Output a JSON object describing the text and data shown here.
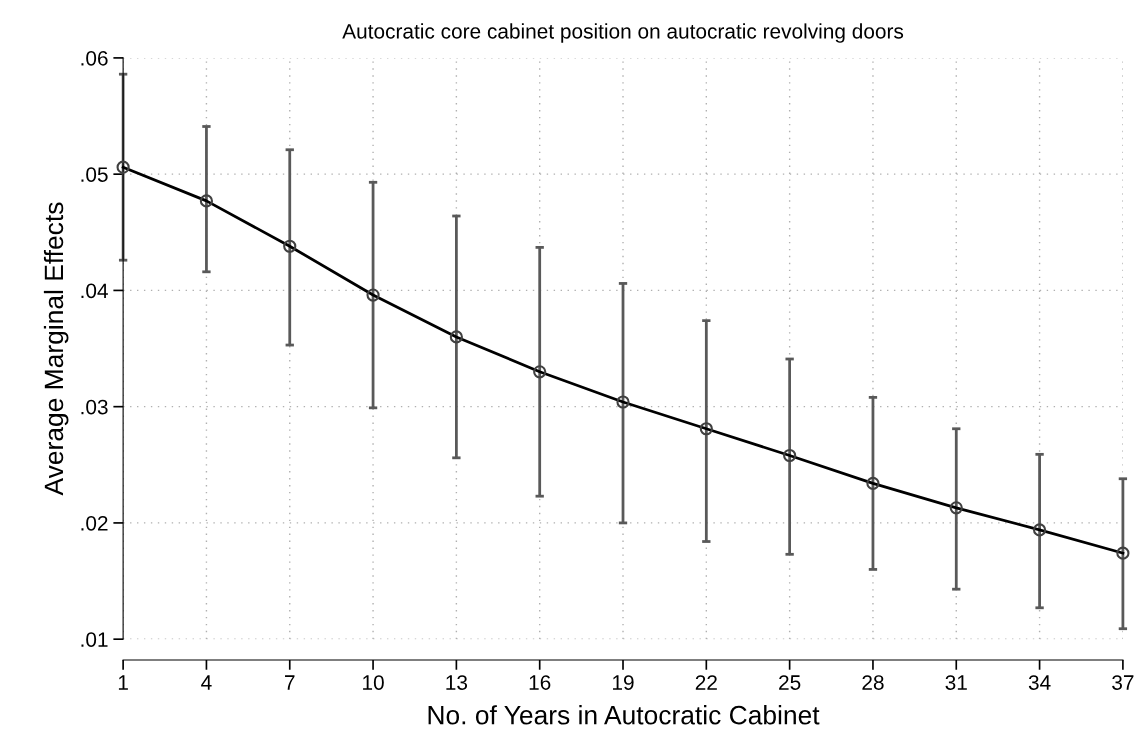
{
  "chart_data": {
    "type": "line",
    "title": "Autocratic core cabinet position on autocratic revolving doors",
    "xlabel": "No. of Years in Autocratic Cabinet",
    "ylabel": "Average Marginal Effects",
    "x": [
      1,
      4,
      7,
      10,
      13,
      16,
      19,
      22,
      25,
      28,
      31,
      34,
      37
    ],
    "series": [
      {
        "color": "#000000",
        "values": [
          0.0506,
          0.0477,
          0.0438,
          0.0396,
          0.036,
          0.033,
          0.0304,
          0.0281,
          0.0258,
          0.0234,
          0.0213,
          0.0194,
          0.0174
        ],
        "errors": [
          [
            0.0426,
            0.0586
          ],
          [
            0.0416,
            0.0541
          ],
          [
            0.0353,
            0.0521
          ],
          [
            0.0299,
            0.0493
          ],
          [
            0.0256,
            0.0464
          ],
          [
            0.0223,
            0.0437
          ],
          [
            0.02,
            0.0406
          ],
          [
            0.0184,
            0.0374
          ],
          [
            0.0173,
            0.0341
          ],
          [
            0.016,
            0.0308
          ],
          [
            0.0143,
            0.0281
          ],
          [
            0.0127,
            0.0259
          ],
          [
            0.0109,
            0.0238
          ]
        ]
      }
    ],
    "xlim": [
      1,
      37
    ],
    "xticks": [
      1,
      4,
      7,
      10,
      13,
      16,
      19,
      22,
      25,
      28,
      31,
      34,
      37
    ],
    "ylim": [
      0.01,
      0.06
    ],
    "yticks": [
      {
        "value": 0.01,
        "label": ".01"
      },
      {
        "value": 0.02,
        "label": ".02"
      },
      {
        "value": 0.03,
        "label": ".03"
      },
      {
        "value": 0.04,
        "label": ".04"
      },
      {
        "value": 0.05,
        "label": ".05"
      },
      {
        "value": 0.06,
        "label": ".06"
      }
    ],
    "grid": true,
    "marker": "circle",
    "line_style": "solid"
  }
}
